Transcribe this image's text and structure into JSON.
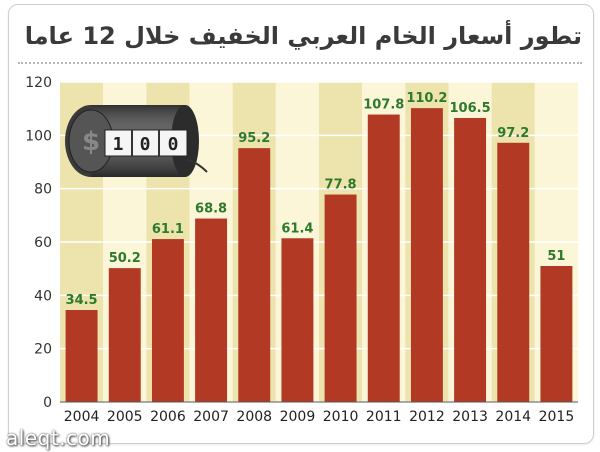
{
  "title": "تطور أسعار الخام العربي الخفيف خلال 12 عاما",
  "watermark": "aleqt.com",
  "icon": {
    "name": "oil-barrel-odometer-icon",
    "digits": [
      "1",
      "0",
      "0"
    ]
  },
  "colors": {
    "bar": "#b23a24",
    "band_light": "#fbf6d8",
    "band_dark": "#ede3ad",
    "value_label": "#2d7a2d"
  },
  "chart_data": {
    "type": "bar",
    "title": "تطور أسعار الخام العربي الخفيف خلال 12 عاما",
    "xlabel": "",
    "ylabel": "",
    "categories": [
      "2004",
      "2005",
      "2006",
      "2007",
      "2008",
      "2009",
      "2010",
      "2011",
      "2012",
      "2013",
      "2014",
      "2015"
    ],
    "values": [
      34.5,
      50.2,
      61.1,
      68.8,
      95.2,
      61.4,
      77.8,
      107.8,
      110.2,
      106.5,
      97.2,
      51
    ],
    "value_labels": [
      "34.5",
      "50.2",
      "61.1",
      "68.8",
      "95.2",
      "61.4",
      "77.8",
      "107.8",
      "110.2",
      "106.5",
      "97.2",
      "51"
    ],
    "ylim": [
      0,
      120
    ],
    "yticks": [
      0,
      20,
      40,
      60,
      80,
      100,
      120
    ],
    "ytick_labels": [
      "0",
      "20",
      "40",
      "60",
      "80",
      "100",
      "120"
    ],
    "grid": true,
    "legend": "none"
  }
}
